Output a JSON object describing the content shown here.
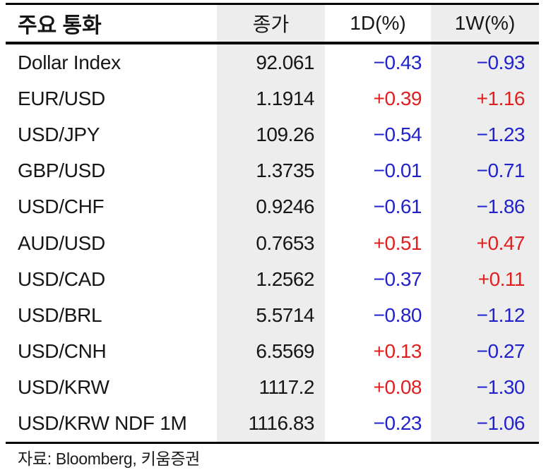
{
  "page": {
    "header": {
      "col_name": "주요 통화",
      "col_close": "종가",
      "col_1d": "1D(%)",
      "col_1w": "1W(%)"
    },
    "rows": [
      {
        "name": "Dollar Index",
        "close": "92.061",
        "d1": "−0.43",
        "w1": "−0.93"
      },
      {
        "name": "EUR/USD",
        "close": "1.1914",
        "d1": "+0.39",
        "w1": "+1.16"
      },
      {
        "name": "USD/JPY",
        "close": "109.26",
        "d1": "−0.54",
        "w1": "−1.23"
      },
      {
        "name": "GBP/USD",
        "close": "1.3735",
        "d1": "−0.01",
        "w1": "−0.71"
      },
      {
        "name": "USD/CHF",
        "close": "0.9246",
        "d1": "−0.61",
        "w1": "−1.86"
      },
      {
        "name": "AUD/USD",
        "close": "0.7653",
        "d1": "+0.51",
        "w1": "+0.47"
      },
      {
        "name": "USD/CAD",
        "close": "1.2562",
        "d1": "−0.37",
        "w1": "+0.11"
      },
      {
        "name": "USD/BRL",
        "close": "5.5714",
        "d1": "−0.80",
        "w1": "−1.12"
      },
      {
        "name": "USD/CNH",
        "close": "6.5569",
        "d1": "+0.13",
        "w1": "−0.27"
      },
      {
        "name": "USD/KRW",
        "close": "1117.2",
        "d1": "+0.08",
        "w1": "−1.30"
      },
      {
        "name": "USD/KRW NDF 1M",
        "close": "1116.83",
        "d1": "−0.23",
        "w1": "−1.06"
      }
    ],
    "footer": {
      "source": "자료: Bloomberg,  키움증권"
    },
    "colors": {
      "positive": "#e01f1f",
      "negative": "#2222cc",
      "shaded_column_bg": "#ededed",
      "text": "#161616",
      "rule": "#000000"
    }
  },
  "chart_data": {
    "type": "table",
    "title": "주요 통화",
    "columns": [
      "주요 통화",
      "종가",
      "1D(%)",
      "1W(%)"
    ],
    "rows": [
      [
        "Dollar Index",
        92.061,
        -0.43,
        -0.93
      ],
      [
        "EUR/USD",
        1.1914,
        0.39,
        1.16
      ],
      [
        "USD/JPY",
        109.26,
        -0.54,
        -1.23
      ],
      [
        "GBP/USD",
        1.3735,
        -0.01,
        -0.71
      ],
      [
        "USD/CHF",
        0.9246,
        -0.61,
        -1.86
      ],
      [
        "AUD/USD",
        0.7653,
        0.51,
        0.47
      ],
      [
        "USD/CAD",
        1.2562,
        -0.37,
        0.11
      ],
      [
        "USD/BRL",
        5.5714,
        -0.8,
        -1.12
      ],
      [
        "USD/CNH",
        6.5569,
        0.13,
        -0.27
      ],
      [
        "USD/KRW",
        1117.2,
        0.08,
        -1.3
      ],
      [
        "USD/KRW NDF 1M",
        1116.83,
        -0.23,
        -1.06
      ]
    ],
    "source": "자료: Bloomberg,  키움증권",
    "legend_note": "positive changes red, negative changes blue; 종가 and 1W(%) columns have light gray shading"
  }
}
